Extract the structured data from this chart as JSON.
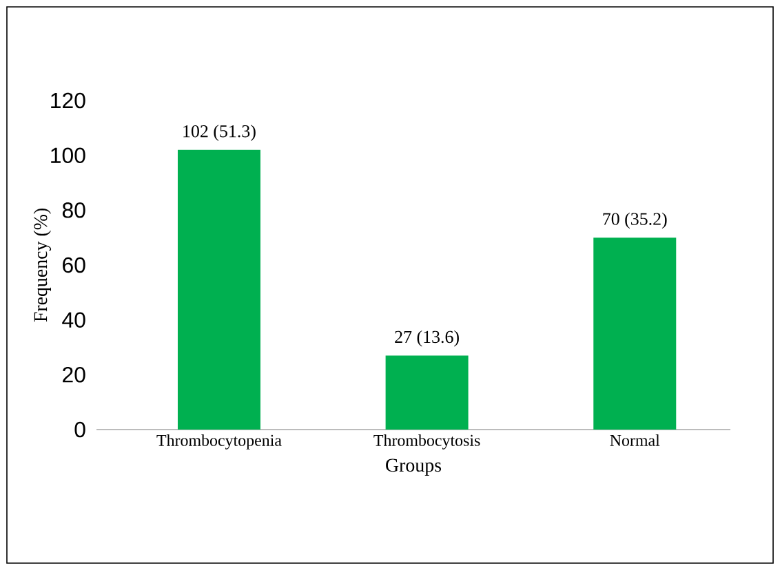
{
  "chart_data": {
    "type": "bar",
    "xlabel": "Groups",
    "ylabel": "Frequency (%)",
    "categories": [
      "Thrombocytopenia",
      "Thrombocytosis",
      "Normal"
    ],
    "values": [
      102,
      27,
      70
    ],
    "value_labels": [
      "102 (51.3)",
      "27 (13.6)",
      "70 (35.2)"
    ],
    "color": "#00b050",
    "ylim": [
      0,
      120
    ],
    "yticks": [
      0,
      20,
      40,
      60,
      80,
      100,
      120
    ],
    "grid": false
  }
}
